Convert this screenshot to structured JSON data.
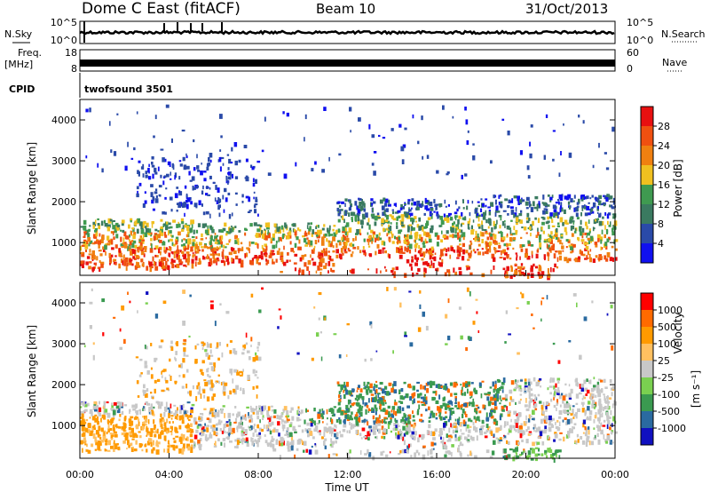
{
  "header": {
    "station": "Dome C East (fitACF)",
    "beam": "Beam 10",
    "date": "31/Oct/2013"
  },
  "colors": {
    "power_scale": [
      "#1010f0",
      "#2a4aa8",
      "#3a7a60",
      "#3f9a50",
      "#f0c020",
      "#f08010",
      "#f05010",
      "#e81010"
    ],
    "velocity_scale": [
      "#ff0000",
      "#ff6a00",
      "#ff9a00",
      "#ffc060",
      "#c8c8c8",
      "#7ad050",
      "#3a9a50",
      "#2a6aa0",
      "#1010c0"
    ],
    "axis": "#000000"
  },
  "chart_data": [
    {
      "type": "line",
      "panel": "noise",
      "left_label": "N.Sky",
      "right_label": "N.Search",
      "left_ticks": [
        "10^5",
        "10^0"
      ],
      "right_ticks": [
        "10^5",
        "10^0"
      ],
      "note": "sky and search noise vs time"
    },
    {
      "type": "line",
      "panel": "frequency",
      "left_label_lines": [
        "Freq.",
        "[MHz]"
      ],
      "right_label": "Nave",
      "left_ticks": [
        "18",
        "8"
      ],
      "right_ticks": [
        "60",
        "0"
      ]
    },
    {
      "type": "table",
      "panel": "cpid",
      "label": "CPID",
      "value": "twofsound 3501"
    },
    {
      "type": "heatmap",
      "panel": "power",
      "ylabel": "Slant Range [km]",
      "y_ticks": [
        "1000",
        "2000",
        "3000",
        "4000"
      ],
      "ylim": [
        200,
        4500
      ],
      "x_ticks": [
        "00:00",
        "04:00",
        "08:00",
        "12:00",
        "16:00",
        "20:00",
        "00:00"
      ],
      "xlim": [
        0,
        24
      ],
      "colorbar_label": "Power [dB]",
      "colorbar_ticks": [
        "4",
        "8",
        "12",
        "16",
        "20",
        "24",
        "28"
      ]
    },
    {
      "type": "heatmap",
      "panel": "velocity",
      "ylabel": "Slant Range [km]",
      "y_ticks": [
        "1000",
        "2000",
        "3000",
        "4000"
      ],
      "ylim": [
        200,
        4500
      ],
      "x_ticks": [
        "00:00",
        "04:00",
        "08:00",
        "12:00",
        "16:00",
        "20:00",
        "00:00"
      ],
      "xlim": [
        0,
        24
      ],
      "xlabel": "Time UT",
      "colorbar_label": "Velocity",
      "colorbar_unit": "[m s⁻¹]",
      "colorbar_ticks": [
        "1000",
        "500",
        "100",
        "25",
        "-25",
        "-100",
        "-500",
        "-1000"
      ]
    }
  ]
}
